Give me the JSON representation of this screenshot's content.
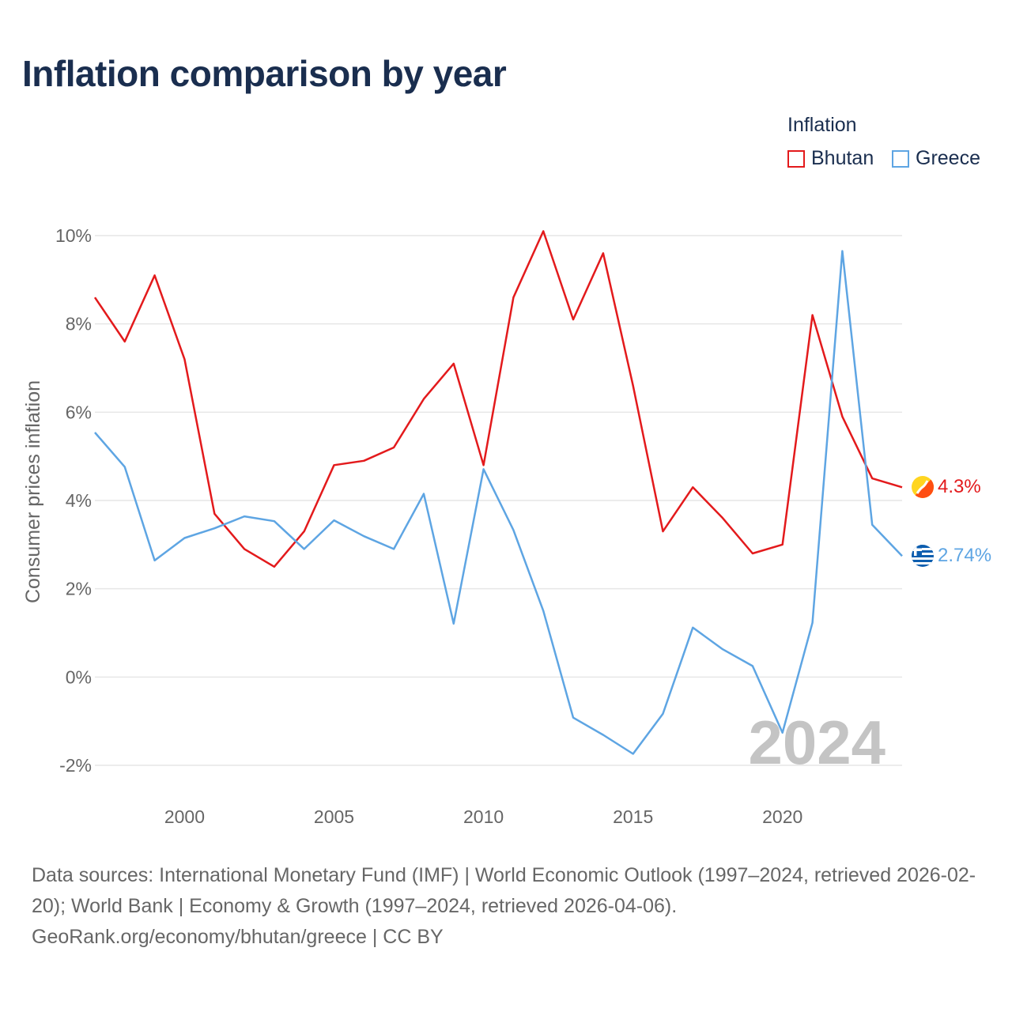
{
  "chart_data": {
    "type": "line",
    "title": "Inflation comparison by year",
    "legend_title": "Inflation",
    "legend_position": "top-right",
    "ylabel": "Consumer prices inflation",
    "xlabel": "",
    "xlim": [
      1997,
      2024
    ],
    "ylim": [
      -2,
      10
    ],
    "yticks": [
      10,
      8,
      6,
      4,
      2,
      0,
      -2
    ],
    "ytick_labels": [
      "10%",
      "8%",
      "6%",
      "4%",
      "2%",
      "0%",
      "-2%"
    ],
    "xticks": [
      2000,
      2005,
      2010,
      2015,
      2020
    ],
    "xtick_labels": [
      "2000",
      "2005",
      "2010",
      "2015",
      "2020"
    ],
    "grid": true,
    "year_watermark": "2024",
    "x": [
      1997,
      1998,
      1999,
      2000,
      2001,
      2002,
      2003,
      2004,
      2005,
      2006,
      2007,
      2008,
      2009,
      2010,
      2011,
      2012,
      2013,
      2014,
      2015,
      2016,
      2017,
      2018,
      2019,
      2020,
      2021,
      2022,
      2023,
      2024
    ],
    "series": [
      {
        "name": "Bhutan",
        "color": "#e31a1c",
        "end_label": "4.3%",
        "values": [
          8.6,
          7.6,
          9.1,
          7.2,
          3.7,
          2.9,
          2.5,
          3.3,
          4.8,
          4.9,
          5.2,
          6.3,
          7.1,
          4.8,
          8.6,
          10.1,
          8.1,
          9.6,
          6.6,
          3.3,
          4.3,
          3.6,
          2.8,
          3.0,
          8.2,
          5.9,
          4.5,
          4.3
        ]
      },
      {
        "name": "Greece",
        "color": "#5ea5e3",
        "end_label": "2.74%",
        "values": [
          5.54,
          4.76,
          2.64,
          3.15,
          3.37,
          3.64,
          3.53,
          2.9,
          3.55,
          3.19,
          2.9,
          4.15,
          1.21,
          4.71,
          3.33,
          1.5,
          -0.92,
          -1.31,
          -1.74,
          -0.83,
          1.12,
          0.63,
          0.25,
          -1.26,
          1.23,
          9.65,
          3.45,
          2.74
        ]
      }
    ]
  },
  "footer": {
    "line1": "Data sources: International Monetary Fund (IMF) | World Economic Outlook (1997–2024, retrieved 2026-02-20); World Bank | Economy & Growth (1997–2024, retrieved 2026-04-06).",
    "line2": "GeoRank.org/economy/bhutan/greece | CC BY"
  }
}
